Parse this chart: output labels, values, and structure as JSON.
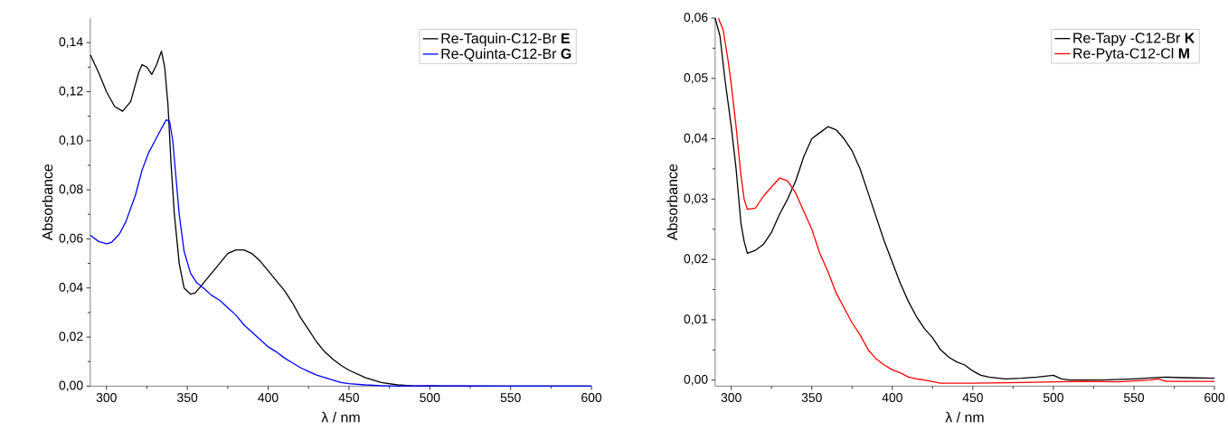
{
  "chart_data": [
    {
      "type": "line",
      "xlabel": "λ / nm",
      "ylabel": "Absorbance",
      "xlim": [
        290,
        600
      ],
      "ylim": [
        0,
        0.15
      ],
      "xticks": [
        300,
        350,
        400,
        450,
        500,
        550,
        600
      ],
      "yticks": [
        {
          "value": 0,
          "label": "0,00"
        },
        {
          "value": 0.02,
          "label": "0,02"
        },
        {
          "value": 0.04,
          "label": "0,04"
        },
        {
          "value": 0.06,
          "label": "0,06"
        },
        {
          "value": 0.08,
          "label": "0,08"
        },
        {
          "value": 0.1,
          "label": "0,10"
        },
        {
          "value": 0.12,
          "label": "0,12"
        },
        {
          "value": 0.14,
          "label": "0,14"
        }
      ],
      "legend": "top right",
      "series": [
        {
          "name": "Re-Taquin-C12-Br **E**",
          "color": "#000000",
          "x": [
            290,
            295,
            300,
            305,
            310,
            315,
            320,
            322,
            325,
            328,
            331,
            334,
            336,
            338,
            340,
            342,
            345,
            348,
            352,
            355,
            360,
            365,
            370,
            375,
            380,
            385,
            390,
            395,
            400,
            405,
            410,
            415,
            420,
            425,
            430,
            435,
            440,
            445,
            450,
            460,
            470,
            480,
            490,
            500,
            550,
            600
          ],
          "values": [
            0.135,
            0.128,
            0.12,
            0.114,
            0.112,
            0.116,
            0.128,
            0.131,
            0.13,
            0.127,
            0.131,
            0.1365,
            0.13,
            0.115,
            0.09,
            0.07,
            0.05,
            0.04,
            0.0375,
            0.038,
            0.042,
            0.046,
            0.05,
            0.054,
            0.0555,
            0.0555,
            0.054,
            0.051,
            0.047,
            0.043,
            0.039,
            0.034,
            0.028,
            0.023,
            0.018,
            0.014,
            0.011,
            0.0085,
            0.0065,
            0.0035,
            0.0015,
            0.0005,
            0.0001,
            0,
            0,
            0
          ]
        },
        {
          "name": "Re-Quinta-C12-Br **G**",
          "color": "#0000ff",
          "x": [
            290,
            295,
            300,
            303,
            308,
            312,
            318,
            322,
            326,
            330,
            334,
            337,
            339,
            341,
            343,
            345,
            348,
            352,
            356,
            360,
            365,
            370,
            375,
            380,
            385,
            390,
            395,
            400,
            405,
            410,
            415,
            420,
            425,
            430,
            435,
            440,
            445,
            450,
            460,
            470,
            480,
            500,
            510,
            550,
            600
          ],
          "values": [
            0.0615,
            0.059,
            0.058,
            0.0585,
            0.062,
            0.067,
            0.078,
            0.088,
            0.095,
            0.1,
            0.105,
            0.1085,
            0.108,
            0.1,
            0.085,
            0.07,
            0.055,
            0.046,
            0.042,
            0.04,
            0.037,
            0.035,
            0.032,
            0.029,
            0.025,
            0.022,
            0.019,
            0.016,
            0.014,
            0.0115,
            0.0095,
            0.0075,
            0.006,
            0.0045,
            0.0035,
            0.0025,
            0.0015,
            0.001,
            0.0005,
            0.0002,
            0,
            0.0002,
            0.0001,
            0,
            0
          ]
        }
      ]
    },
    {
      "type": "line",
      "xlabel": "λ / nm",
      "ylabel": "Absorbance",
      "xlim": [
        290,
        600
      ],
      "ylim": [
        -0.001,
        0.06
      ],
      "xticks": [
        300,
        350,
        400,
        450,
        500,
        550,
        600
      ],
      "yticks": [
        {
          "value": 0,
          "label": "0,00"
        },
        {
          "value": 0.01,
          "label": "0,01"
        },
        {
          "value": 0.02,
          "label": "0,02"
        },
        {
          "value": 0.03,
          "label": "0,03"
        },
        {
          "value": 0.04,
          "label": "0,04"
        },
        {
          "value": 0.05,
          "label": "0,05"
        },
        {
          "value": 0.06,
          "label": "0,06"
        }
      ],
      "legend": "top right",
      "series": [
        {
          "name": "Re-Tapy -C12-Br **K**",
          "color": "#000000",
          "x": [
            290,
            293,
            296,
            300,
            303,
            306,
            308,
            310,
            315,
            320,
            325,
            330,
            335,
            340,
            345,
            350,
            355,
            360,
            365,
            370,
            375,
            380,
            385,
            390,
            395,
            400,
            405,
            410,
            415,
            420,
            425,
            430,
            435,
            440,
            445,
            450,
            455,
            460,
            470,
            480,
            490,
            500,
            505,
            510,
            530,
            550,
            570,
            580,
            600
          ],
          "values": [
            0.06,
            0.057,
            0.05,
            0.042,
            0.035,
            0.026,
            0.023,
            0.021,
            0.0215,
            0.0225,
            0.0245,
            0.0275,
            0.03,
            0.033,
            0.037,
            0.04,
            0.041,
            0.042,
            0.0415,
            0.04,
            0.038,
            0.035,
            0.031,
            0.027,
            0.023,
            0.0195,
            0.016,
            0.013,
            0.0105,
            0.0085,
            0.007,
            0.005,
            0.0038,
            0.003,
            0.0025,
            0.0015,
            0.0008,
            0.0005,
            0.0002,
            0.0003,
            0.0005,
            0.0008,
            0.0002,
            0,
            0,
            0.0002,
            0.0005,
            0.0004,
            0.0003
          ]
        },
        {
          "name": "Re-Pyta-C12-Cl **M**",
          "color": "#ff0000",
          "x": [
            292,
            295,
            298,
            300,
            303,
            306,
            308,
            310,
            315,
            320,
            325,
            330,
            335,
            340,
            345,
            350,
            355,
            360,
            365,
            370,
            375,
            380,
            385,
            390,
            395,
            400,
            405,
            410,
            415,
            420,
            430,
            450,
            480,
            500,
            520,
            540,
            560,
            565,
            570,
            600
          ],
          "values": [
            0.06,
            0.058,
            0.053,
            0.049,
            0.042,
            0.034,
            0.03,
            0.0283,
            0.0285,
            0.0305,
            0.032,
            0.0335,
            0.033,
            0.031,
            0.028,
            0.025,
            0.021,
            0.018,
            0.0145,
            0.012,
            0.0095,
            0.0075,
            0.005,
            0.0035,
            0.0025,
            0.0017,
            0.0012,
            0.0005,
            0.0002,
            0,
            -0.0005,
            -0.0005,
            -0.0004,
            -0.0003,
            -0.0002,
            -0.0003,
            0,
            0.0002,
            -0.0002,
            -0.0002
          ]
        }
      ]
    }
  ]
}
